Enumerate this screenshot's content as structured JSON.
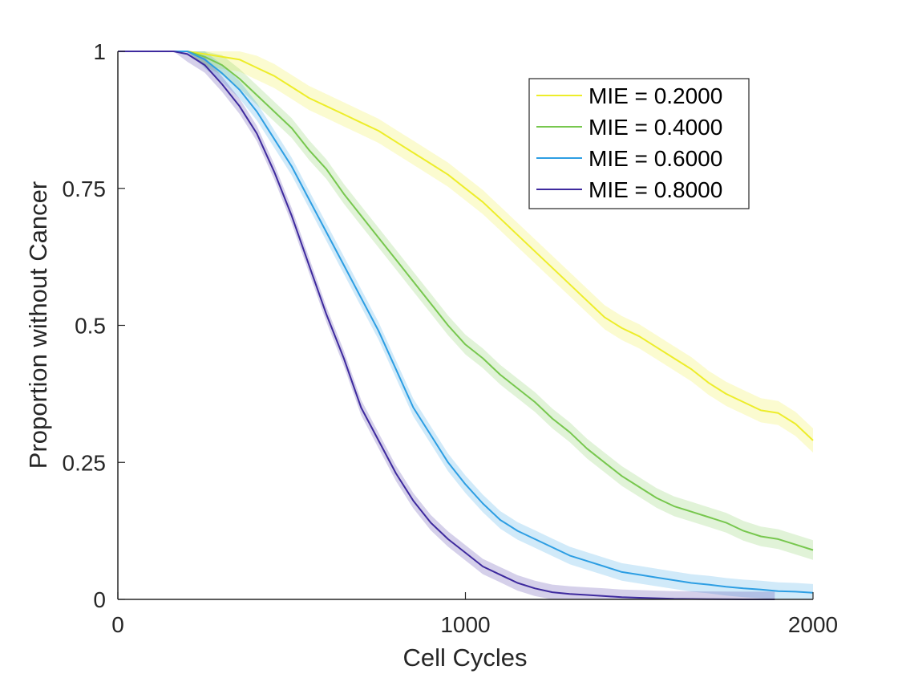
{
  "chart_data": {
    "type": "line",
    "title": "",
    "xlabel": "Cell Cycles",
    "ylabel": "Proportion without Cancer",
    "xlim": [
      0,
      2000
    ],
    "ylim": [
      0,
      1
    ],
    "xticks": [
      0,
      1000,
      2000
    ],
    "xtick_labels": [
      "0",
      "1000",
      "2000"
    ],
    "yticks": [
      0,
      0.25,
      0.5,
      0.75,
      1
    ],
    "ytick_labels": [
      "0",
      "0.25",
      "0.5",
      "0.75",
      "1"
    ],
    "grid": false,
    "legend_position": "top-right",
    "series": [
      {
        "name": "MIE = 0.2000",
        "color": "#EDED2A",
        "band_halfwidth": 0.022,
        "points": [
          [
            0,
            1
          ],
          [
            160,
            1
          ],
          [
            200,
            1
          ],
          [
            250,
            0.995
          ],
          [
            300,
            0.99
          ],
          [
            350,
            0.985
          ],
          [
            400,
            0.97
          ],
          [
            450,
            0.955
          ],
          [
            500,
            0.935
          ],
          [
            550,
            0.915
          ],
          [
            600,
            0.9
          ],
          [
            650,
            0.885
          ],
          [
            700,
            0.87
          ],
          [
            750,
            0.855
          ],
          [
            800,
            0.835
          ],
          [
            850,
            0.815
          ],
          [
            900,
            0.795
          ],
          [
            950,
            0.775
          ],
          [
            1000,
            0.75
          ],
          [
            1050,
            0.725
          ],
          [
            1100,
            0.695
          ],
          [
            1150,
            0.665
          ],
          [
            1200,
            0.635
          ],
          [
            1250,
            0.605
          ],
          [
            1300,
            0.575
          ],
          [
            1350,
            0.545
          ],
          [
            1400,
            0.515
          ],
          [
            1450,
            0.495
          ],
          [
            1500,
            0.48
          ],
          [
            1550,
            0.46
          ],
          [
            1600,
            0.44
          ],
          [
            1650,
            0.42
          ],
          [
            1700,
            0.395
          ],
          [
            1750,
            0.375
          ],
          [
            1800,
            0.36
          ],
          [
            1850,
            0.345
          ],
          [
            1900,
            0.34
          ],
          [
            1950,
            0.32
          ],
          [
            2000,
            0.29
          ]
        ]
      },
      {
        "name": "MIE = 0.4000",
        "color": "#77C74E",
        "band_halfwidth": 0.018,
        "points": [
          [
            0,
            1
          ],
          [
            160,
            1
          ],
          [
            200,
            1
          ],
          [
            250,
            0.99
          ],
          [
            300,
            0.975
          ],
          [
            350,
            0.95
          ],
          [
            400,
            0.92
          ],
          [
            450,
            0.89
          ],
          [
            500,
            0.86
          ],
          [
            550,
            0.82
          ],
          [
            600,
            0.785
          ],
          [
            650,
            0.74
          ],
          [
            700,
            0.7
          ],
          [
            750,
            0.66
          ],
          [
            800,
            0.62
          ],
          [
            850,
            0.58
          ],
          [
            900,
            0.54
          ],
          [
            950,
            0.5
          ],
          [
            1000,
            0.465
          ],
          [
            1050,
            0.44
          ],
          [
            1100,
            0.41
          ],
          [
            1150,
            0.385
          ],
          [
            1200,
            0.36
          ],
          [
            1250,
            0.33
          ],
          [
            1300,
            0.305
          ],
          [
            1350,
            0.275
          ],
          [
            1400,
            0.25
          ],
          [
            1450,
            0.225
          ],
          [
            1500,
            0.205
          ],
          [
            1550,
            0.185
          ],
          [
            1600,
            0.17
          ],
          [
            1650,
            0.16
          ],
          [
            1700,
            0.15
          ],
          [
            1750,
            0.14
          ],
          [
            1800,
            0.125
          ],
          [
            1850,
            0.115
          ],
          [
            1900,
            0.11
          ],
          [
            1950,
            0.1
          ],
          [
            2000,
            0.09
          ]
        ]
      },
      {
        "name": "MIE = 0.6000",
        "color": "#2D9EE3",
        "band_halfwidth": 0.016,
        "points": [
          [
            0,
            1
          ],
          [
            160,
            1
          ],
          [
            200,
            1
          ],
          [
            250,
            0.985
          ],
          [
            300,
            0.96
          ],
          [
            350,
            0.93
          ],
          [
            400,
            0.89
          ],
          [
            450,
            0.84
          ],
          [
            500,
            0.79
          ],
          [
            550,
            0.73
          ],
          [
            600,
            0.67
          ],
          [
            650,
            0.61
          ],
          [
            700,
            0.55
          ],
          [
            750,
            0.49
          ],
          [
            800,
            0.42
          ],
          [
            850,
            0.35
          ],
          [
            900,
            0.3
          ],
          [
            950,
            0.25
          ],
          [
            1000,
            0.21
          ],
          [
            1050,
            0.175
          ],
          [
            1100,
            0.145
          ],
          [
            1150,
            0.125
          ],
          [
            1200,
            0.11
          ],
          [
            1250,
            0.095
          ],
          [
            1300,
            0.08
          ],
          [
            1350,
            0.07
          ],
          [
            1400,
            0.06
          ],
          [
            1450,
            0.05
          ],
          [
            1500,
            0.045
          ],
          [
            1550,
            0.04
          ],
          [
            1600,
            0.035
          ],
          [
            1650,
            0.03
          ],
          [
            1700,
            0.027
          ],
          [
            1750,
            0.023
          ],
          [
            1800,
            0.02
          ],
          [
            1850,
            0.018
          ],
          [
            1900,
            0.015
          ],
          [
            1950,
            0.014
          ],
          [
            2000,
            0.012
          ]
        ]
      },
      {
        "name": "MIE = 0.8000",
        "color": "#3E2A9E",
        "band_halfwidth": 0.014,
        "points": [
          [
            0,
            1
          ],
          [
            160,
            1
          ],
          [
            200,
            0.995
          ],
          [
            250,
            0.975
          ],
          [
            300,
            0.94
          ],
          [
            350,
            0.9
          ],
          [
            400,
            0.85
          ],
          [
            450,
            0.78
          ],
          [
            500,
            0.7
          ],
          [
            550,
            0.61
          ],
          [
            600,
            0.52
          ],
          [
            650,
            0.44
          ],
          [
            700,
            0.35
          ],
          [
            750,
            0.29
          ],
          [
            800,
            0.23
          ],
          [
            850,
            0.18
          ],
          [
            900,
            0.14
          ],
          [
            950,
            0.11
          ],
          [
            1000,
            0.085
          ],
          [
            1050,
            0.06
          ],
          [
            1100,
            0.045
          ],
          [
            1150,
            0.03
          ],
          [
            1200,
            0.02
          ],
          [
            1250,
            0.013
          ],
          [
            1300,
            0.01
          ],
          [
            1350,
            0.008
          ],
          [
            1400,
            0.006
          ],
          [
            1450,
            0.004
          ],
          [
            1500,
            0.003
          ],
          [
            1550,
            0.002
          ],
          [
            1600,
            0.001
          ],
          [
            1700,
            0.0005
          ],
          [
            1800,
            0
          ],
          [
            1890,
            0
          ]
        ]
      }
    ]
  }
}
